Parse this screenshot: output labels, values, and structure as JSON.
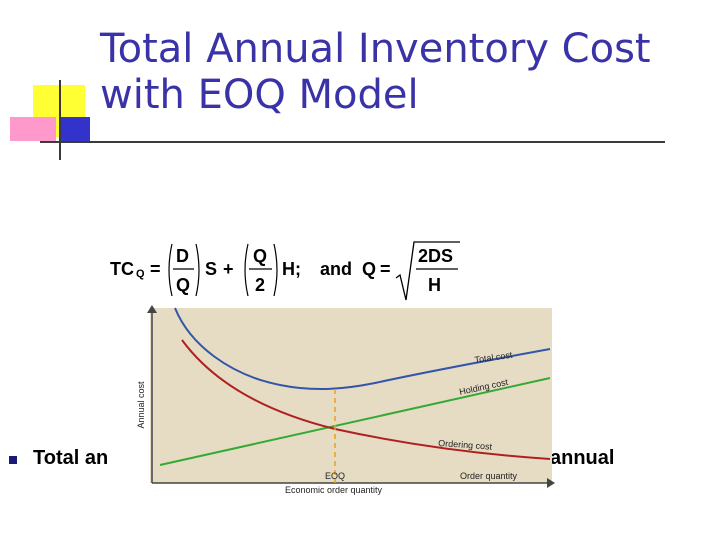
{
  "slide": {
    "title_line1": "Total Annual Inventory Cost",
    "title_line2": "with EOQ Model",
    "bullet_text_left": "Total an",
    "bullet_text_right": "annual"
  },
  "formula": {
    "lhs": "TC",
    "lhs_sub": "Q",
    "frac1_num": "D",
    "frac1_den": "Q",
    "var_s": "S",
    "frac2_num": "Q",
    "frac2_den": "2",
    "var_h": "H;",
    "and_text": "and",
    "q_label": "Q",
    "sqrt_num": "2DS",
    "sqrt_den": "H"
  },
  "chart_data": {
    "type": "line",
    "xlabel": "Order quantity",
    "ylabel": "Annual cost",
    "subtitle": "Economic order quantity",
    "eoq_label": "EOQ",
    "series": [
      {
        "name": "Total cost",
        "color": "#3355aa"
      },
      {
        "name": "Holding cost",
        "color": "#33aa33"
      },
      {
        "name": "Ordering cost",
        "color": "#b02020"
      }
    ],
    "colors": {
      "background": "#e6dcc4",
      "eoq_line": "#e8a020"
    }
  }
}
